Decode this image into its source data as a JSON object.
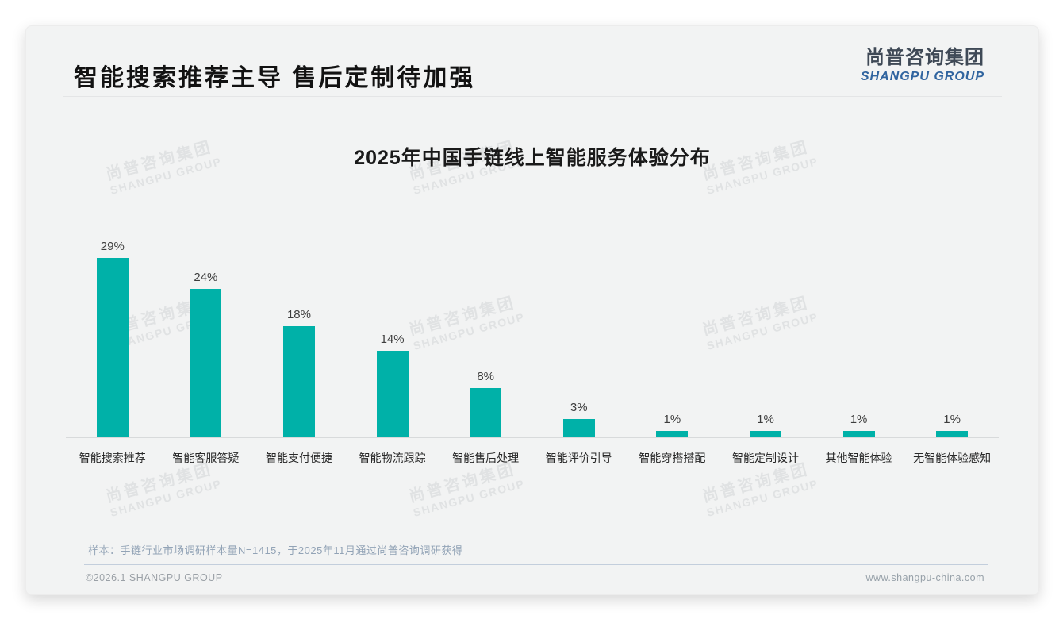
{
  "page": {
    "header": {
      "title": "智能搜索推荐主导 售后定制待加强"
    },
    "logo": {
      "cn": "尚普咨询集团",
      "en": "SHANGPU GROUP"
    },
    "watermark": {
      "line1": "尚普咨询集团",
      "line2": "SHANGPU GROUP"
    },
    "note": "样本：手链行业市场调研样本量N=1415，于2025年11月通过尚普咨询调研获得",
    "footer": {
      "left": "©2026.1 SHANGPU GROUP",
      "right": "www.shangpu-china.com"
    }
  },
  "colors": {
    "bar": "#00B1A8",
    "card_bg": "#F2F3F3",
    "logo_cn": "#3F4956",
    "logo_en": "#30649F",
    "axis_line": "#D8DADB",
    "note_text": "#92A3B6"
  },
  "chart_data": {
    "type": "bar",
    "title": "2025年中国手链线上智能服务体验分布",
    "categories": [
      "智能搜索推荐",
      "智能客服答疑",
      "智能支付便捷",
      "智能物流跟踪",
      "智能售后处理",
      "智能评价引导",
      "智能穿搭搭配",
      "智能定制设计",
      "其他智能体验",
      "无智能体验感知"
    ],
    "values": [
      29,
      24,
      18,
      14,
      8,
      3,
      1,
      1,
      1,
      1
    ],
    "unit": "%",
    "value_labels": [
      "29%",
      "24%",
      "18%",
      "14%",
      "8%",
      "3%",
      "1%",
      "1%",
      "1%",
      "1%"
    ],
    "xlabel": "",
    "ylabel": "",
    "ylim": [
      0,
      30
    ],
    "grid": false,
    "legend": "none"
  }
}
